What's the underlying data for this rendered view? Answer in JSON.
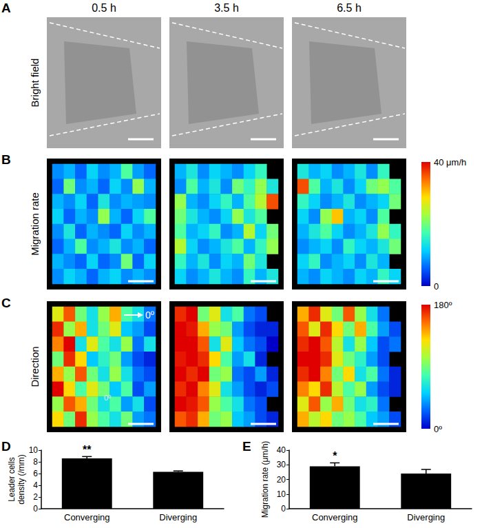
{
  "figure": {
    "panel_labels": [
      "A",
      "B",
      "C",
      "D",
      "E"
    ],
    "column_titles": [
      "0.5 h",
      "3.5 h",
      "6.5 h"
    ],
    "row_label": "Bright field"
  },
  "chart_data": [
    {
      "type": "heatmap",
      "row_label": "Migration rate",
      "panels": [
        [
          [
            8,
            10,
            6,
            12,
            8,
            10,
            18,
            9,
            6
          ],
          [
            6,
            20,
            8,
            10,
            6,
            12,
            8,
            22,
            10
          ],
          [
            10,
            8,
            12,
            6,
            14,
            8,
            10,
            9,
            8
          ],
          [
            12,
            6,
            10,
            8,
            22,
            10,
            6,
            12,
            18
          ],
          [
            8,
            14,
            6,
            10,
            8,
            6,
            12,
            8,
            10
          ],
          [
            6,
            10,
            18,
            8,
            10,
            14,
            8,
            10,
            6
          ],
          [
            10,
            8,
            6,
            12,
            6,
            8,
            20,
            6,
            12
          ],
          [
            8,
            12,
            10,
            6,
            10,
            12,
            8,
            10,
            8
          ]
        ],
        [
          [
            10,
            14,
            8,
            12,
            10,
            8,
            12,
            16,
            null
          ],
          [
            8,
            18,
            10,
            14,
            8,
            20,
            16,
            22,
            14
          ],
          [
            22,
            10,
            8,
            12,
            16,
            10,
            18,
            24,
            36
          ],
          [
            20,
            14,
            10,
            8,
            12,
            22,
            14,
            18,
            null
          ],
          [
            18,
            10,
            12,
            16,
            8,
            10,
            24,
            12,
            20
          ],
          [
            24,
            12,
            8,
            10,
            14,
            18,
            10,
            16,
            22
          ],
          [
            16,
            10,
            14,
            8,
            12,
            10,
            20,
            14,
            null
          ],
          [
            12,
            8,
            10,
            14,
            10,
            8,
            16,
            10,
            14
          ]
        ],
        [
          [
            14,
            10,
            12,
            8,
            10,
            14,
            8,
            16,
            null
          ],
          [
            36,
            18,
            10,
            14,
            8,
            12,
            20,
            22,
            18
          ],
          [
            16,
            12,
            8,
            10,
            14,
            8,
            10,
            12,
            20
          ],
          [
            12,
            8,
            22,
            30,
            10,
            12,
            8,
            18,
            null
          ],
          [
            10,
            14,
            18,
            12,
            8,
            10,
            14,
            22,
            16
          ],
          [
            8,
            10,
            12,
            8,
            16,
            12,
            10,
            14,
            20
          ],
          [
            12,
            16,
            8,
            10,
            12,
            8,
            14,
            10,
            null
          ],
          [
            10,
            8,
            12,
            10,
            8,
            12,
            10,
            16,
            12
          ]
        ]
      ],
      "color_range": [
        0,
        40
      ],
      "color_ticks": [
        {
          "value": 40,
          "label": "40 μm/h"
        },
        0
      ],
      "colors": [
        "#0000c8",
        "#0060ff",
        "#00d0ff",
        "#40ffb0",
        "#a0ff40",
        "#ffe000",
        "#ff7000",
        "#e00000"
      ]
    },
    {
      "type": "heatmap",
      "row_label": "Direction",
      "panels": [
        [
          [
            120,
            160,
            90,
            60,
            100,
            140,
            80,
            60,
            30
          ],
          [
            170,
            100,
            140,
            60,
            90,
            120,
            50,
            40,
            20
          ],
          [
            150,
            180,
            60,
            120,
            80,
            60,
            100,
            30,
            60
          ],
          [
            90,
            170,
            130,
            50,
            70,
            90,
            40,
            20,
            10
          ],
          [
            140,
            100,
            160,
            90,
            60,
            100,
            60,
            30,
            20
          ],
          [
            180,
            130,
            80,
            120,
            90,
            50,
            80,
            20,
            40
          ],
          [
            100,
            160,
            140,
            90,
            60,
            80,
            40,
            60,
            20
          ],
          [
            130,
            90,
            170,
            100,
            80,
            60,
            90,
            40,
            30
          ]
        ],
        [
          [
            170,
            180,
            90,
            120,
            60,
            80,
            30,
            20,
            null
          ],
          [
            180,
            175,
            140,
            100,
            90,
            40,
            20,
            10,
            10
          ],
          [
            180,
            180,
            160,
            60,
            120,
            50,
            30,
            20,
            0
          ],
          [
            175,
            180,
            170,
            130,
            80,
            40,
            60,
            10,
            null
          ],
          [
            180,
            170,
            180,
            90,
            100,
            30,
            20,
            40,
            10
          ],
          [
            170,
            180,
            150,
            120,
            60,
            40,
            20,
            10,
            20
          ],
          [
            180,
            175,
            160,
            100,
            80,
            60,
            30,
            20,
            null
          ],
          [
            160,
            170,
            140,
            90,
            100,
            50,
            40,
            20,
            10
          ]
        ],
        [
          [
            140,
            170,
            120,
            90,
            160,
            100,
            60,
            30,
            null
          ],
          [
            160,
            120,
            170,
            130,
            90,
            140,
            80,
            40,
            20
          ],
          [
            170,
            180,
            160,
            110,
            60,
            100,
            50,
            20,
            30
          ],
          [
            180,
            180,
            170,
            120,
            90,
            70,
            40,
            20,
            null
          ],
          [
            170,
            180,
            150,
            90,
            130,
            60,
            80,
            30,
            10
          ],
          [
            150,
            130,
            170,
            110,
            80,
            100,
            40,
            20,
            10
          ],
          [
            120,
            160,
            100,
            140,
            90,
            60,
            70,
            30,
            null
          ],
          [
            140,
            110,
            130,
            90,
            100,
            80,
            50,
            40,
            20
          ]
        ]
      ],
      "color_range": [
        0,
        180
      ],
      "color_ticks": [
        {
          "value": 180,
          "label": "180º"
        },
        {
          "value": 0,
          "label": "0º"
        }
      ],
      "colors": [
        "#0000c8",
        "#0060ff",
        "#00d0ff",
        "#40ffb0",
        "#a0ff40",
        "#ffe000",
        "#ff7000",
        "#e00000"
      ],
      "annotations": [
        "0º",
        "0º"
      ]
    },
    {
      "type": "bar",
      "categories": [
        "Converging",
        "Diverging"
      ],
      "values": [
        8.6,
        6.3
      ],
      "errors": [
        0.3,
        0.15
      ],
      "ylabel": "Leader cells\ndensity (/mm)",
      "ylim": [
        0,
        10
      ],
      "yticks": [
        0,
        2,
        4,
        6,
        8,
        10
      ],
      "color": "#000000",
      "annotations": [
        {
          "category": "Converging",
          "text": "**"
        }
      ]
    },
    {
      "type": "bar",
      "categories": [
        "Converging",
        "Diverging"
      ],
      "values": [
        29,
        24
      ],
      "errors": [
        2.3,
        2.8
      ],
      "ylabel": "Migration rate (μm/h)",
      "ylim": [
        0,
        40
      ],
      "yticks": [
        0,
        10,
        20,
        30,
        40
      ],
      "color": "#000000",
      "annotations": [
        {
          "category": "Converging",
          "text": "*"
        }
      ]
    }
  ]
}
